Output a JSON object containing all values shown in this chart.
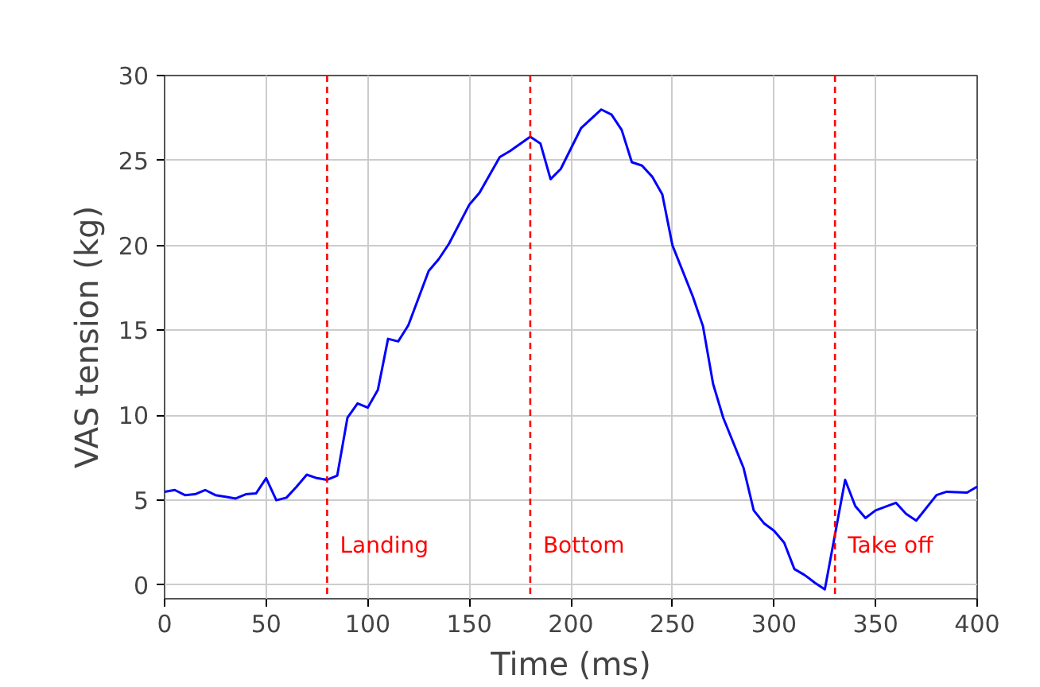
{
  "chart_data": {
    "type": "line",
    "xlabel": "Time (ms)",
    "ylabel": "VAS tension (kg)",
    "x": [
      0,
      5,
      10,
      15,
      20,
      25,
      30,
      35,
      40,
      45,
      50,
      55,
      60,
      65,
      70,
      75,
      80,
      85,
      90,
      95,
      100,
      105,
      110,
      115,
      120,
      130,
      135,
      140,
      150,
      155,
      165,
      170,
      180,
      185,
      190,
      195,
      205,
      215,
      220,
      225,
      230,
      235,
      240,
      245,
      250,
      260,
      265,
      270,
      275,
      285,
      290,
      295,
      300,
      305,
      310,
      315,
      320,
      325,
      335,
      340,
      345,
      350,
      360,
      365,
      370,
      380,
      385,
      395,
      400
    ],
    "series": [
      {
        "color": "#0000ff",
        "values": [
          5.5,
          5.6,
          5.3,
          5.35,
          5.6,
          5.3,
          5.2,
          5.1,
          5.35,
          5.4,
          6.3,
          5.0,
          5.15,
          5.8,
          6.5,
          6.3,
          6.2,
          6.45,
          9.85,
          10.7,
          10.45,
          11.5,
          14.5,
          14.35,
          15.3,
          18.5,
          19.2,
          20.1,
          22.4,
          23.1,
          25.2,
          25.55,
          26.4,
          26.0,
          23.9,
          24.5,
          26.9,
          28.0,
          27.7,
          26.8,
          24.9,
          24.7,
          24.05,
          23.0,
          20.0,
          17.0,
          15.25,
          11.85,
          9.85,
          6.9,
          4.4,
          3.65,
          3.2,
          2.5,
          0.95,
          0.6,
          0.15,
          -0.25,
          6.2,
          4.65,
          3.95,
          4.4,
          4.85,
          4.2,
          3.8,
          5.3,
          5.5,
          5.45,
          5.8
        ]
      }
    ],
    "xlim": [
      0,
      400
    ],
    "ylim": [
      -0.8,
      30
    ],
    "xticks": [
      0,
      50,
      100,
      150,
      200,
      250,
      300,
      350,
      400
    ],
    "yticks": [
      0,
      5,
      10,
      15,
      20,
      25,
      30
    ],
    "grid": true,
    "line_style": "solid",
    "ref_lines": [
      {
        "axis": "x",
        "value": 80,
        "label": "Landing",
        "color": "#ff0000",
        "line_style": "dashed"
      },
      {
        "axis": "x",
        "value": 180,
        "label": "Bottom",
        "color": "#ff0000",
        "line_style": "dashed"
      },
      {
        "axis": "x",
        "value": 330,
        "label": "Take off",
        "color": "#ff0000",
        "line_style": "dashed"
      }
    ]
  }
}
